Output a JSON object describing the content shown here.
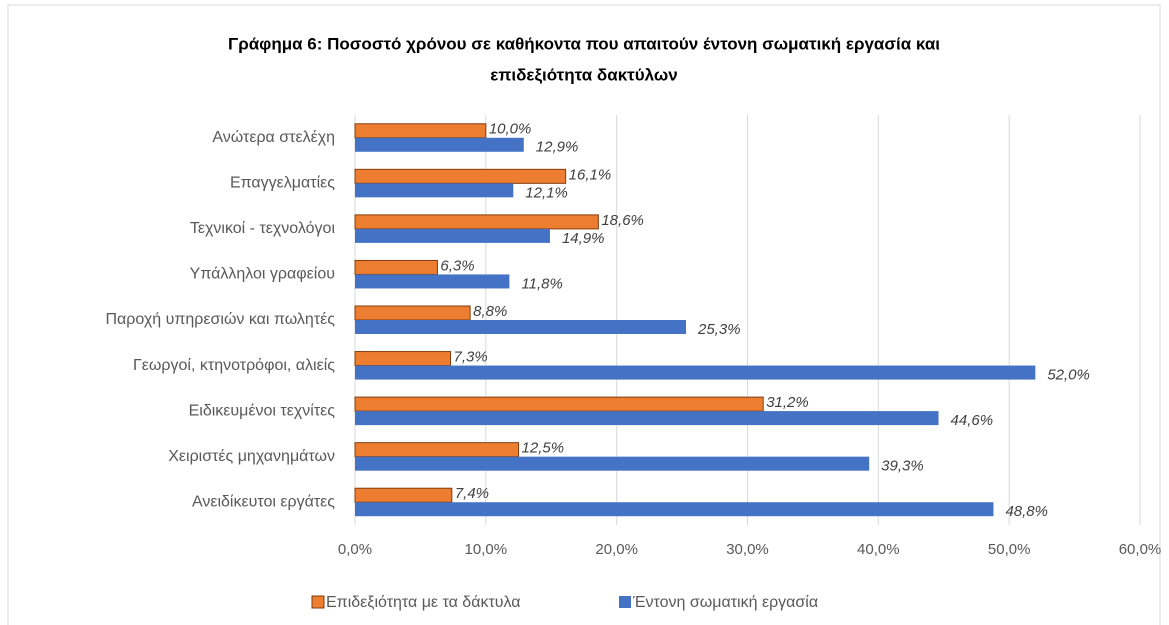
{
  "chart_data": {
    "type": "bar",
    "orientation": "horizontal",
    "title": [
      "Γράφημα 6: Ποσοστό χρόνου σε καθήκοντα που απαιτούν έντονη σωματική εργασία και",
      "επιδεξιότητα δακτύλων"
    ],
    "categories": [
      "Ανώτερα στελέχη",
      "Επαγγελματίες",
      "Τεχνικοί - τεχνολόγοι",
      "Υπάλληλοι γραφείου",
      "Παροχή υπηρεσιών και πωλητές",
      "Γεωργοί, κτηνοτρόφοι, αλιείς",
      "Ειδικευμένοι τεχνίτες",
      "Χειριστές μηχανημάτων",
      "Ανειδίκευτοι εργάτες"
    ],
    "series": [
      {
        "name": "Επιδεξιότητα με τα δάκτυλα",
        "color": "#ed7d31",
        "values": [
          10.0,
          16.1,
          18.6,
          6.3,
          8.8,
          7.3,
          31.2,
          12.5,
          7.4
        ],
        "value_labels": [
          "10,0%",
          "16,1%",
          "18,6%",
          "6,3%",
          "8,8%",
          "7,3%",
          "31,2%",
          "12,5%",
          "7,4%"
        ]
      },
      {
        "name": "Έντονη σωματική εργασία",
        "color": "#4472c4",
        "values": [
          12.9,
          12.1,
          14.9,
          11.8,
          25.3,
          52.0,
          44.6,
          39.3,
          48.8
        ],
        "value_labels": [
          "12,9%",
          "12,1%",
          "14,9%",
          "11,8%",
          "25,3%",
          "52,0%",
          "44,6%",
          "39,3%",
          "48,8%"
        ]
      }
    ],
    "xlim": [
      0,
      60
    ],
    "xticks": [
      {
        "value": 0,
        "label": "0,0%"
      },
      {
        "value": 10,
        "label": "10,0%"
      },
      {
        "value": 20,
        "label": "20,0%"
      },
      {
        "value": 30,
        "label": "30,0%"
      },
      {
        "value": 40,
        "label": "40,0%"
      },
      {
        "value": 50,
        "label": "50,0%"
      },
      {
        "value": 60,
        "label": "60,0%"
      }
    ],
    "grid": true,
    "legend": "bottom"
  }
}
